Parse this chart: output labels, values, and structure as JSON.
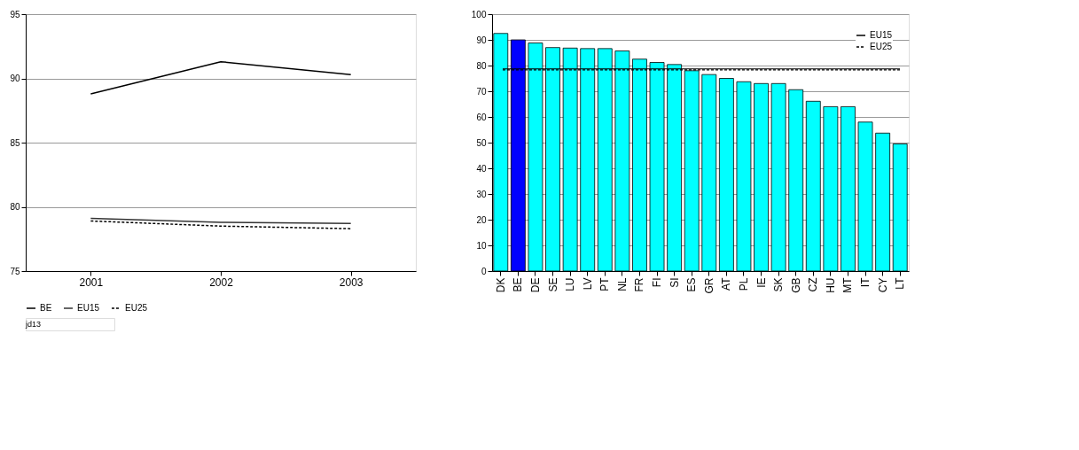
{
  "chart_data": [
    {
      "type": "line",
      "categories": [
        "2001",
        "2002",
        "2003"
      ],
      "series": [
        {
          "name": "BE",
          "color": "#000000",
          "values": [
            88.8,
            91.3,
            90.3
          ]
        },
        {
          "name": "EU15",
          "color": "#333333",
          "values": [
            79.1,
            78.8,
            78.7
          ]
        },
        {
          "name": "EU25",
          "color": "#000000",
          "values": [
            78.9,
            78.5,
            78.3
          ],
          "line_style": "dashed"
        }
      ],
      "ylim": [
        75,
        95
      ],
      "yticks": [
        75,
        80,
        85,
        90,
        95
      ],
      "grid": "y",
      "legend": "bottom",
      "marker": "none",
      "annotations": [
        "jd13"
      ]
    },
    {
      "type": "bar",
      "categories": [
        "DK",
        "BE",
        "DE",
        "SE",
        "LU",
        "LV",
        "PT",
        "NL",
        "FR",
        "FI",
        "SI",
        "ES",
        "GR",
        "AT",
        "PL",
        "IE",
        "SK",
        "GB",
        "CZ",
        "HU",
        "MT",
        "IT",
        "CY",
        "LT"
      ],
      "values": [
        92.5,
        90,
        88.8,
        87,
        86.8,
        86.6,
        86.6,
        85.7,
        82.5,
        81.2,
        80.4,
        78,
        76.5,
        75,
        73.7,
        73,
        73,
        70.6,
        66.1,
        64,
        64,
        58,
        53.7,
        49.5
      ],
      "colors": [
        "#00ffff",
        "#0000ff",
        "#00ffff",
        "#00ffff",
        "#00ffff",
        "#00ffff",
        "#00ffff",
        "#00ffff",
        "#00ffff",
        "#00ffff",
        "#00ffff",
        "#00ffff",
        "#00ffff",
        "#00ffff",
        "#00ffff",
        "#00ffff",
        "#00ffff",
        "#00ffff",
        "#00ffff",
        "#00ffff",
        "#00ffff",
        "#00ffff",
        "#00ffff",
        "#00ffff"
      ],
      "ylim": [
        0,
        100
      ],
      "yticks": [
        0,
        10,
        20,
        30,
        40,
        50,
        60,
        70,
        80,
        90,
        100
      ],
      "grid": "y",
      "legend": "top right",
      "ref_lines": [
        {
          "axis": "y",
          "value": 78.7,
          "label": "EU15",
          "color": "#000000",
          "line_style": "solid"
        },
        {
          "axis": "y",
          "value": 78.3,
          "label": "EU25",
          "color": "#000000",
          "line_style": "dashed"
        }
      ]
    }
  ]
}
